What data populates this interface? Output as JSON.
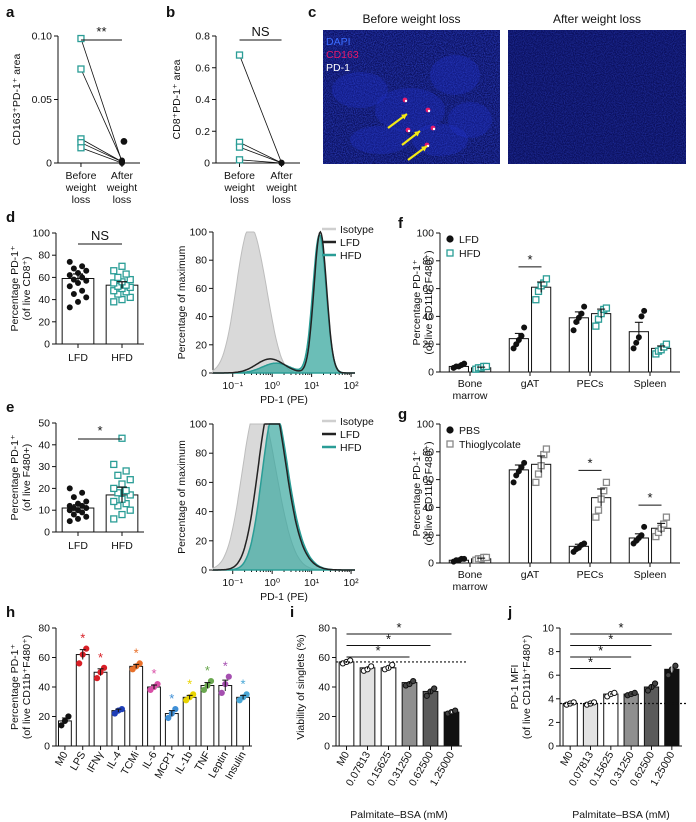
{
  "colors": {
    "teal": "#2a9d96",
    "teal_fill": "#3aa89f",
    "blue_bg": "#0a0f5c",
    "black": "#111111",
    "gray": "#bdbdbd"
  },
  "chart_data": [
    {
      "id": "a",
      "letter": "a",
      "type": "scatter",
      "ylabel": "CD163⁺PD-1⁺ area",
      "categories": [
        "Before weight loss",
        "After weight loss"
      ],
      "ylim": [
        0,
        0.1
      ],
      "yticks": [
        "0",
        "0.05",
        "0.10"
      ],
      "ytick_values": [
        0,
        0.05,
        0.1
      ],
      "pairs": [
        [
          0.098,
          0.001
        ],
        [
          0.074,
          0.002
        ],
        [
          0.019,
          0.001
        ],
        [
          0.016,
          0.001
        ],
        [
          0.012,
          0.0
        ]
      ],
      "after_mean": 0.017,
      "significance": "**"
    },
    {
      "id": "b",
      "letter": "b",
      "type": "scatter",
      "ylabel": "CD8⁺PD-1⁺ area",
      "categories": [
        "Before weight loss",
        "After weight loss"
      ],
      "ylim": [
        0,
        0.8
      ],
      "yticks": [
        "0",
        "0.2",
        "0.4",
        "0.6",
        "0.8"
      ],
      "ytick_values": [
        0,
        0.2,
        0.4,
        0.6,
        0.8
      ],
      "pairs": [
        [
          0.68,
          0.002
        ],
        [
          0.13,
          0.001
        ],
        [
          0.1,
          0.001
        ],
        [
          0.02,
          0.0
        ]
      ],
      "significance": "NS"
    },
    {
      "id": "c",
      "letter": "c",
      "type": "image",
      "titles": [
        "Before weight loss",
        "After weight loss"
      ],
      "legend": [
        "DAPI",
        "CD163",
        "PD-1"
      ],
      "legend_colors": [
        "#3a6bff",
        "#e8196a",
        "#ffffff"
      ]
    },
    {
      "id": "d",
      "letter": "d",
      "type": "bar",
      "ylabel_lines": [
        "Percentage PD-1⁺",
        "(of live CD8⁺)"
      ],
      "categories": [
        "LFD",
        "HFD"
      ],
      "ylim": [
        0,
        100
      ],
      "yticks": [
        "0",
        "20",
        "40",
        "60",
        "80",
        "100"
      ],
      "ytick_values": [
        0,
        20,
        40,
        60,
        80,
        100
      ],
      "values": [
        59,
        53
      ],
      "points": [
        [
          33,
          38,
          42,
          45,
          48,
          52,
          55,
          57,
          58,
          60,
          62,
          64,
          66,
          68,
          70,
          74
        ],
        [
          38,
          40,
          42,
          45,
          47,
          48,
          50,
          51,
          52,
          53,
          55,
          56,
          58,
          60,
          63,
          66,
          70
        ]
      ],
      "significance": "NS"
    },
    {
      "id": "d2",
      "type": "histogram",
      "ylabel": "Percentage of maximum",
      "xlabel": "PD-1 (PE)",
      "xticks": [
        "10⁻¹",
        "10⁰",
        "10¹",
        "10²"
      ],
      "yticks": [
        "0",
        "20",
        "40",
        "60",
        "80",
        "100"
      ],
      "legend": [
        "Isotype",
        "LFD",
        "HFD"
      ]
    },
    {
      "id": "e",
      "letter": "e",
      "type": "bar",
      "ylabel_lines": [
        "Percentage PD-1⁺",
        "(of live F480+)"
      ],
      "categories": [
        "LFD",
        "HFD"
      ],
      "ylim": [
        0,
        50
      ],
      "yticks": [
        "0",
        "10",
        "20",
        "30",
        "40",
        "50"
      ],
      "ytick_values": [
        0,
        10,
        20,
        30,
        40,
        50
      ],
      "values": [
        11,
        17
      ],
      "points": [
        [
          5,
          6,
          7,
          8,
          9,
          10,
          10,
          11,
          11,
          12,
          12,
          13,
          14,
          16,
          18,
          20
        ],
        [
          6,
          8,
          10,
          12,
          13,
          14,
          15,
          17,
          18,
          19,
          20,
          22,
          24,
          26,
          28,
          31,
          43
        ]
      ],
      "significance": "*"
    },
    {
      "id": "e2",
      "type": "histogram",
      "ylabel": "Percentage of maximum",
      "xlabel": "PD-1 (PE)",
      "xticks": [
        "10⁻¹",
        "10⁰",
        "10¹",
        "10²"
      ],
      "yticks": [
        "0",
        "20",
        "40",
        "60",
        "80",
        "100"
      ],
      "legend": [
        "Isotype",
        "LFD",
        "HFD"
      ]
    },
    {
      "id": "f",
      "letter": "f",
      "type": "bar",
      "ylabel_lines": [
        "Percentage PD-1⁺",
        "(of live CD11b⁺F480⁺)"
      ],
      "categories": [
        "Bone marrow",
        "gAT",
        "PECs",
        "Spleen"
      ],
      "ylim": [
        0,
        100
      ],
      "yticks": [
        "0",
        "20",
        "40",
        "60",
        "80",
        "100"
      ],
      "ytick_values": [
        0,
        20,
        40,
        60,
        80,
        100
      ],
      "series": [
        {
          "name": "LFD",
          "values": [
            4,
            24,
            39,
            29
          ],
          "points": [
            [
              3,
              4,
              4,
              5,
              6
            ],
            [
              17,
              20,
              23,
              26,
              32
            ],
            [
              30,
              36,
              39,
              42,
              47
            ],
            [
              17,
              21,
              25,
              40,
              44
            ]
          ]
        },
        {
          "name": "HFD",
          "values": [
            3,
            61,
            42,
            17
          ],
          "points": [
            [
              2,
              3,
              3,
              4,
              4
            ],
            [
              52,
              58,
              62,
              64,
              67
            ],
            [
              33,
              38,
              42,
              45,
              46
            ],
            [
              13,
              15,
              16,
              18,
              20
            ]
          ]
        }
      ],
      "significance": [
        {
          "group": 1,
          "label": "*"
        }
      ]
    },
    {
      "id": "g",
      "letter": "g",
      "type": "bar",
      "ylabel_lines": [
        "Percentage PD-1⁺",
        "(of live CD11b⁺F480⁺)"
      ],
      "categories": [
        "Bone marrow",
        "gAT",
        "PECs",
        "Spleen"
      ],
      "ylim": [
        0,
        100
      ],
      "yticks": [
        "0",
        "20",
        "40",
        "60",
        "80",
        "100"
      ],
      "ytick_values": [
        0,
        20,
        40,
        60,
        80,
        100
      ],
      "series": [
        {
          "name": "PBS",
          "values": [
            2,
            67,
            12,
            18
          ],
          "points": [
            [
              1,
              2,
              2,
              3,
              3
            ],
            [
              58,
              63,
              66,
              69,
              72
            ],
            [
              8,
              10,
              11,
              13,
              14
            ],
            [
              14,
              16,
              18,
              20,
              26
            ]
          ]
        },
        {
          "name": "Thioglycolate",
          "values": [
            3,
            71,
            47,
            25
          ],
          "points": [
            [
              2,
              3,
              3,
              4,
              4
            ],
            [
              58,
              64,
              70,
              78,
              82
            ],
            [
              33,
              38,
              46,
              52,
              58
            ],
            [
              19,
              22,
              25,
              28,
              33
            ]
          ]
        }
      ],
      "significance": [
        {
          "group": 2,
          "label": "*"
        },
        {
          "group": 3,
          "label": "*"
        }
      ]
    },
    {
      "id": "h",
      "letter": "h",
      "type": "bar",
      "ylabel_lines": [
        "Percentage PD-1⁺",
        "(of live CD11b⁺F480⁺)"
      ],
      "categories": [
        "M0",
        "LPS",
        "IFNγ",
        "IL-4",
        "TCMi",
        "IL-6",
        "MCP1",
        "IL-1b",
        "TNF",
        "Leptin",
        "Insulin"
      ],
      "ylim": [
        0,
        80
      ],
      "yticks": [
        "0",
        "20",
        "40",
        "60",
        "80"
      ],
      "ytick_values": [
        0,
        20,
        40,
        60,
        80
      ],
      "values": [
        17,
        62,
        50,
        24,
        54,
        40,
        22,
        33,
        41,
        41,
        33
      ],
      "point_colors": [
        "#111111",
        "#d81f26",
        "#d81f26",
        "#1f3fb8",
        "#e8702a",
        "#d94fa6",
        "#3f8fd6",
        "#e9d400",
        "#6aa84f",
        "#a54fb0",
        "#49a7d6"
      ],
      "points": [
        [
          14,
          17,
          20
        ],
        [
          56,
          62,
          66
        ],
        [
          46,
          50,
          53
        ],
        [
          22,
          24,
          25
        ],
        [
          52,
          54,
          56
        ],
        [
          38,
          40,
          42
        ],
        [
          19,
          22,
          25
        ],
        [
          31,
          33,
          35
        ],
        [
          38,
          41,
          44
        ],
        [
          36,
          42,
          47
        ],
        [
          31,
          33,
          35
        ]
      ],
      "significance": [
        "",
        "*",
        "*",
        "",
        "*",
        "*",
        "*",
        "*",
        "*",
        "*",
        "*"
      ]
    },
    {
      "id": "i",
      "letter": "i",
      "type": "bar",
      "ylabel": "Viability of singlets (%)",
      "xlabel": "Palmitate–BSA (mM)",
      "categories": [
        "M0",
        "0.07813",
        "0.15625",
        "0.31250",
        "0.62500",
        "1.25000"
      ],
      "ylim": [
        0,
        80
      ],
      "yticks": [
        "0",
        "20",
        "40",
        "60",
        "80"
      ],
      "ytick_values": [
        0,
        20,
        40,
        60,
        80
      ],
      "values": [
        57,
        53,
        53,
        43,
        37,
        23
      ],
      "bar_fills": [
        "#ffffff",
        "#e3e3e3",
        "#ffffff",
        "#8f8f8f",
        "#5a5a5a",
        "#111111"
      ],
      "points": [
        [
          56,
          57,
          58
        ],
        [
          51,
          52,
          54
        ],
        [
          52,
          53,
          55
        ],
        [
          41,
          42,
          44
        ],
        [
          34,
          37,
          39
        ],
        [
          22,
          23,
          24
        ]
      ],
      "reference": 57,
      "significance": [
        {
          "to": 3,
          "label": "*"
        },
        {
          "to": 4,
          "label": "*"
        },
        {
          "to": 5,
          "label": "*"
        }
      ]
    },
    {
      "id": "j",
      "letter": "j",
      "type": "bar",
      "ylabel_lines": [
        "PD-1 MFI",
        "(of live CD11b⁺F480⁺)"
      ],
      "xlabel": "Palmitate–BSA (mM)",
      "categories": [
        "M0",
        "0.07813",
        "0.15625",
        "0.31250",
        "0.62500",
        "1.25000"
      ],
      "ylim": [
        0,
        10
      ],
      "yticks": [
        "0",
        "2",
        "4",
        "6",
        "8",
        "10"
      ],
      "ytick_values": [
        0,
        2,
        4,
        6,
        8,
        10
      ],
      "values": [
        3.6,
        3.6,
        4.4,
        4.4,
        5.0,
        6.5
      ],
      "bar_fills": [
        "#ffffff",
        "#e3e3e3",
        "#ffffff",
        "#8f8f8f",
        "#5a5a5a",
        "#111111"
      ],
      "points": [
        [
          3.5,
          3.6,
          3.7
        ],
        [
          3.5,
          3.6,
          3.7
        ],
        [
          4.2,
          4.4,
          4.5
        ],
        [
          4.3,
          4.4,
          4.5
        ],
        [
          4.7,
          5.0,
          5.3
        ],
        [
          6.0,
          6.5,
          6.8
        ]
      ],
      "reference": 3.6,
      "significance": [
        {
          "to": 2,
          "label": "*"
        },
        {
          "to": 3,
          "label": "*"
        },
        {
          "to": 4,
          "label": "*"
        },
        {
          "to": 5,
          "label": "*"
        }
      ]
    }
  ]
}
